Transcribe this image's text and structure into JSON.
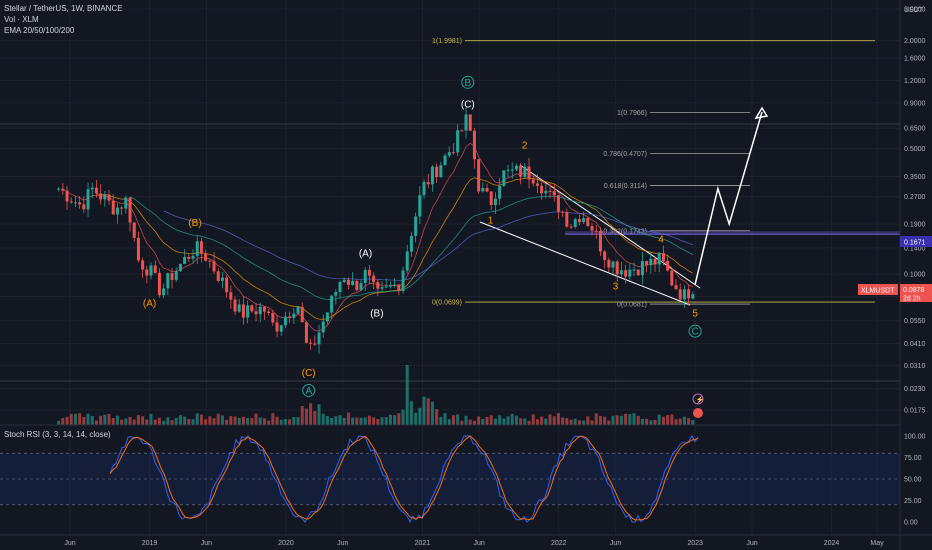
{
  "header": {
    "title": "Stellar / TetherUS, 1W, BINANCE",
    "volume": "Vol · XLM",
    "ema": "EMA 20/50/100/200",
    "currency": "USDT"
  },
  "price_tags": {
    "level_price": "0.1671",
    "symbol": "XLMUSDT",
    "last_price": "0.0878",
    "countdown": "2d 2h"
  },
  "colors": {
    "background": "#131722",
    "up": "#26a69a",
    "down": "#ef5350",
    "wave_orange": "#ff9800",
    "wave_white": "#ffffff",
    "wave_teal": "#26a69a",
    "fib": "#a3a3a3",
    "level_line": "#6a5acd",
    "rsi_k": "#2962ff",
    "rsi_d": "#ff6d00"
  },
  "chart_data": [
    {
      "type": "line",
      "title": "Stellar / TetherUS, 1W, BINANCE",
      "y_scale": "log",
      "y_ticks": [
        "3.0000",
        "2.0000",
        "1.6000",
        "1.2000",
        "0.9000",
        "0.6500",
        "0.5000",
        "0.3500",
        "0.2700",
        "0.1900",
        "0.1400",
        "0.1000",
        "0.0750",
        "0.0550",
        "0.0410",
        "0.0310",
        "0.0230",
        "0.0175"
      ],
      "x_ticks": [
        "Jun",
        "2019",
        "Jun",
        "2020",
        "Jun",
        "2021",
        "Jun",
        "2022",
        "Jun",
        "2023",
        "Jun",
        "2024",
        "May"
      ],
      "price_path": [
        [
          "2018-05",
          0.3
        ],
        [
          "2018-07",
          0.24
        ],
        [
          "2018-08",
          0.3
        ],
        [
          "2018-10",
          0.23
        ],
        [
          "2018-11",
          0.26
        ],
        [
          "2018-12",
          0.12
        ],
        [
          "2019-01",
          0.105
        ],
        [
          "2019-02",
          0.08
        ],
        [
          "2019-03",
          0.1
        ],
        [
          "2019-05",
          0.14
        ],
        [
          "2019-06",
          0.125
        ],
        [
          "2019-07",
          0.1
        ],
        [
          "2019-09",
          0.06
        ],
        [
          "2019-11",
          0.065
        ],
        [
          "2019-12",
          0.05
        ],
        [
          "2020-02",
          0.07
        ],
        [
          "2020-03",
          0.035
        ],
        [
          "2020-05",
          0.07
        ],
        [
          "2020-06",
          0.1
        ],
        [
          "2020-07",
          0.085
        ],
        [
          "2020-08",
          0.1
        ],
        [
          "2020-09",
          0.075
        ],
        [
          "2020-11",
          0.09
        ],
        [
          "2020-12",
          0.17
        ],
        [
          "2021-01",
          0.3
        ],
        [
          "2021-03",
          0.45
        ],
        [
          "2021-04",
          0.55
        ],
        [
          "2021-05",
          0.75
        ],
        [
          "2021-06",
          0.3
        ],
        [
          "2021-07",
          0.25
        ],
        [
          "2021-08",
          0.36
        ],
        [
          "2021-09",
          0.37
        ],
        [
          "2021-10",
          0.37
        ],
        [
          "2021-11",
          0.35
        ],
        [
          "2021-12",
          0.28
        ],
        [
          "2022-01",
          0.24
        ],
        [
          "2022-02",
          0.19
        ],
        [
          "2022-03",
          0.22
        ],
        [
          "2022-04",
          0.18
        ],
        [
          "2022-05",
          0.13
        ],
        [
          "2022-06",
          0.11
        ],
        [
          "2022-07",
          0.105
        ],
        [
          "2022-08",
          0.11
        ],
        [
          "2022-09",
          0.115
        ],
        [
          "2022-10",
          0.12
        ],
        [
          "2022-11",
          0.09
        ],
        [
          "2022-12",
          0.075
        ],
        [
          "2023-01",
          0.0878
        ]
      ],
      "projection": [
        [
          "2023-01",
          0.0878
        ],
        [
          "2023-03",
          0.3
        ],
        [
          "2023-04",
          0.19
        ],
        [
          "2023-06",
          0.8
        ]
      ],
      "fib_levels": [
        {
          "label": "1(1.9981)",
          "value": 1.9981,
          "color": "#c9b94a"
        },
        {
          "label": "1(0.7966)",
          "value": 0.7966,
          "color": "#a3a3a3"
        },
        {
          "label": "0.786(0.4707)",
          "value": 0.4707,
          "color": "#a3a3a3"
        },
        {
          "label": "0.618(0.3114)",
          "value": 0.3114,
          "color": "#a3a3a3"
        },
        {
          "label": "0.382(0.1743)",
          "value": 0.1743,
          "color": "#a3a3a3"
        },
        {
          "label": "0(0.0699)",
          "value": 0.0699,
          "color": "#c9b94a"
        },
        {
          "label": "0(0.0681)",
          "value": 0.0681,
          "color": "#a3a3a3"
        }
      ],
      "horizontal_level": 0.1671,
      "waves": [
        {
          "label": "(A)",
          "date": "2019-01",
          "value": 0.066,
          "color": "#ff9800"
        },
        {
          "label": "(B)",
          "date": "2019-05",
          "value": 0.185,
          "color": "#ff9800"
        },
        {
          "label": "(C)",
          "date": "2020-03",
          "value": 0.027,
          "color": "#ff9800"
        },
        {
          "label": "A",
          "date": "2020-03",
          "value": 0.0215,
          "color": "#26a69a",
          "circle": true
        },
        {
          "label": "(A)",
          "date": "2020-08",
          "value": 0.125,
          "color": "#ffffff"
        },
        {
          "label": "(B)",
          "date": "2020-09",
          "value": 0.058,
          "color": "#ffffff"
        },
        {
          "label": "(C)",
          "date": "2021-05",
          "value": 0.85,
          "color": "#ffffff"
        },
        {
          "label": "B",
          "date": "2021-05",
          "value": 1.12,
          "color": "#26a69a",
          "circle": true
        },
        {
          "label": "1",
          "date": "2021-07",
          "value": 0.192,
          "color": "#ff9800"
        },
        {
          "label": "2",
          "date": "2021-10",
          "value": 0.5,
          "color": "#ff9800"
        },
        {
          "label": "3",
          "date": "2022-06",
          "value": 0.082,
          "color": "#ff9800"
        },
        {
          "label": "4",
          "date": "2022-10",
          "value": 0.15,
          "color": "#ff9800"
        },
        {
          "label": "5",
          "date": "2023-01",
          "value": 0.058,
          "color": "#ff9800"
        },
        {
          "label": "C",
          "date": "2023-01",
          "value": 0.046,
          "color": "#26a69a",
          "circle": true
        }
      ]
    },
    {
      "type": "line",
      "title": "Stoch RSI (3, 3, 14, 14, close)",
      "ylim": [
        0,
        100
      ],
      "y_ticks": [
        "100.00",
        "75.00",
        "50.00",
        "25.00",
        "0.00"
      ],
      "bands": [
        20,
        80
      ]
    }
  ]
}
